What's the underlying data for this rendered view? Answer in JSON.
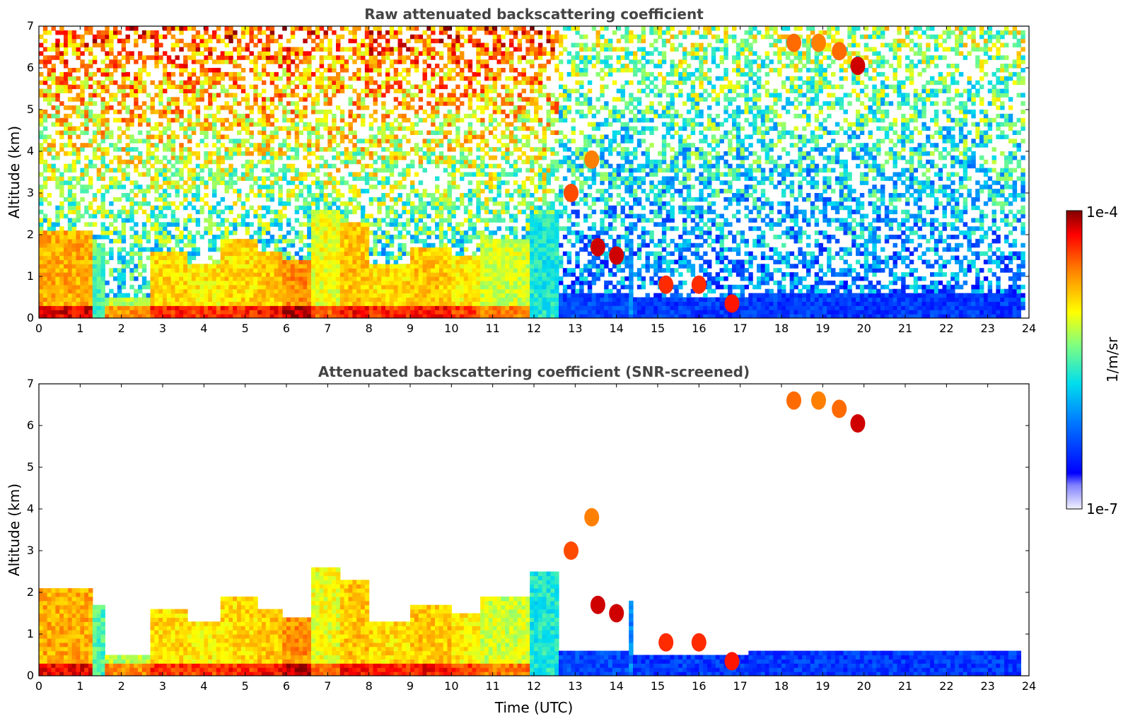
{
  "chart_data": [
    {
      "type": "heatmap",
      "title": "Raw attenuated backscattering coefficient",
      "xlabel": "",
      "ylabel": "Altitude (km)",
      "xlim": [
        0,
        24
      ],
      "ylim": [
        0,
        7
      ],
      "xticks": [
        "0",
        "1",
        "2",
        "3",
        "4",
        "5",
        "6",
        "7",
        "8",
        "9",
        "10",
        "11",
        "12",
        "13",
        "14",
        "15",
        "16",
        "17",
        "18",
        "19",
        "20",
        "21",
        "22",
        "23",
        "24"
      ],
      "yticks": [
        "0",
        "1",
        "2",
        "3",
        "4",
        "5",
        "6",
        "7"
      ],
      "screened": false
    },
    {
      "type": "heatmap",
      "title": "Attenuated backscattering coefficient (SNR-screened)",
      "xlabel": "Time (UTC)",
      "ylabel": "Altitude (km)",
      "xlim": [
        0,
        24
      ],
      "ylim": [
        0,
        7
      ],
      "xticks": [
        "0",
        "1",
        "2",
        "3",
        "4",
        "5",
        "6",
        "7",
        "8",
        "9",
        "10",
        "11",
        "12",
        "13",
        "14",
        "15",
        "16",
        "17",
        "18",
        "19",
        "20",
        "21",
        "22",
        "23",
        "24"
      ],
      "yticks": [
        "0",
        "1",
        "2",
        "3",
        "4",
        "5",
        "6",
        "7"
      ],
      "screened": true
    }
  ],
  "colorbar": {
    "label": "1/m/sr",
    "max_label": "1e-4",
    "min_label": "1e-7",
    "scale": "log",
    "colormap": "jet"
  },
  "features": {
    "data_end_hour": 23.85,
    "boundary_layer": [
      {
        "t0": 0.0,
        "t1": 1.35,
        "top_km": 2.05,
        "level": 0.75
      },
      {
        "t0": 1.35,
        "t1": 1.65,
        "top_km": 1.7,
        "level": 0.5
      },
      {
        "t0": 1.65,
        "t1": 2.7,
        "top_km": 0.5,
        "level": 0.6
      },
      {
        "t0": 2.7,
        "t1": 3.6,
        "top_km": 1.6,
        "level": 0.7
      },
      {
        "t0": 3.6,
        "t1": 4.4,
        "top_km": 1.3,
        "level": 0.68
      },
      {
        "t0": 4.4,
        "t1": 5.3,
        "top_km": 1.9,
        "level": 0.7
      },
      {
        "t0": 5.3,
        "t1": 5.9,
        "top_km": 1.6,
        "level": 0.72
      },
      {
        "t0": 5.9,
        "t1": 6.6,
        "top_km": 1.4,
        "level": 0.78
      },
      {
        "t0": 6.6,
        "t1": 7.3,
        "top_km": 2.6,
        "level": 0.65
      },
      {
        "t0": 7.3,
        "t1": 8.0,
        "top_km": 2.3,
        "level": 0.72
      },
      {
        "t0": 8.0,
        "t1": 9.0,
        "top_km": 1.3,
        "level": 0.7
      },
      {
        "t0": 9.0,
        "t1": 10.0,
        "top_km": 1.7,
        "level": 0.72
      },
      {
        "t0": 10.0,
        "t1": 10.7,
        "top_km": 1.5,
        "level": 0.68
      },
      {
        "t0": 10.7,
        "t1": 11.9,
        "top_km": 1.9,
        "level": 0.62
      },
      {
        "t0": 11.9,
        "t1": 12.65,
        "top_km": 2.5,
        "level": 0.45
      },
      {
        "t0": 12.65,
        "t1": 14.3,
        "top_km": 0.55,
        "level": 0.22
      },
      {
        "t0": 14.3,
        "t1": 14.45,
        "top_km": 1.8,
        "level": 0.3
      },
      {
        "t0": 14.45,
        "t1": 17.2,
        "top_km": 0.5,
        "level": 0.2
      },
      {
        "t0": 17.2,
        "t1": 23.85,
        "top_km": 0.55,
        "level": 0.2
      }
    ],
    "cloud_streaks": [
      {
        "t": 12.9,
        "alt": 3.0,
        "level": 0.85
      },
      {
        "t": 13.4,
        "alt": 3.8,
        "level": 0.8
      },
      {
        "t": 13.55,
        "alt": 1.7,
        "level": 0.95
      },
      {
        "t": 14.0,
        "alt": 1.5,
        "level": 0.95
      },
      {
        "t": 15.2,
        "alt": 0.8,
        "level": 0.88
      },
      {
        "t": 16.0,
        "alt": 0.8,
        "level": 0.88
      },
      {
        "t": 16.8,
        "alt": 0.35,
        "level": 0.9
      },
      {
        "t": 18.3,
        "alt": 6.6,
        "level": 0.82
      },
      {
        "t": 18.9,
        "alt": 6.6,
        "level": 0.8
      },
      {
        "t": 19.4,
        "alt": 6.4,
        "level": 0.82
      },
      {
        "t": 19.85,
        "alt": 6.05,
        "level": 0.95
      }
    ]
  }
}
